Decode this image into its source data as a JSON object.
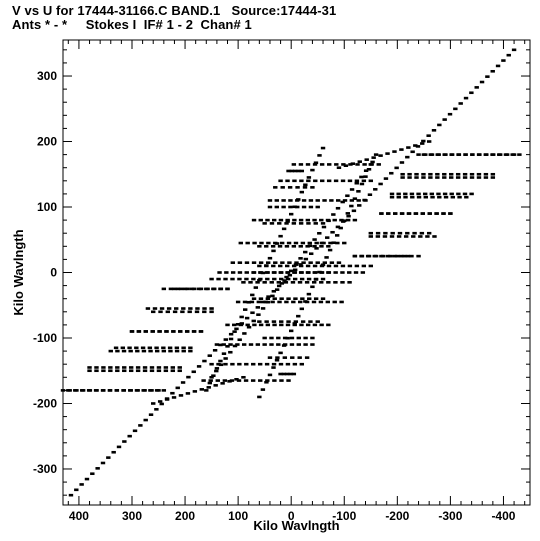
{
  "header": {
    "line1": "V vs U for 17444-31166.C BAND.1   Source:17444-31",
    "line2": "Ants * - *     Stokes I  IF# 1 - 2  Chan# 1"
  },
  "chart_data": {
    "type": "scatter",
    "title": "V vs U for 17444-31166.C BAND.1   Source:17444-31",
    "subtitle": "Ants * - *     Stokes I  IF# 1 - 2  Chan# 1",
    "xlabel": "Kilo Wavlngth",
    "ylabel": "Kilo Wavlngth",
    "xlim": [
      430,
      -450
    ],
    "ylim": [
      -355,
      355
    ],
    "x_reversed": true,
    "xticks": [
      400,
      300,
      200,
      100,
      0,
      -100,
      -200,
      -300,
      -400
    ],
    "xtick_labels": [
      "400",
      "300",
      "200",
      "100",
      "0",
      "-100",
      "-200",
      "-300",
      "-400"
    ],
    "yticks": [
      -300,
      -200,
      -100,
      0,
      100,
      200,
      300
    ],
    "ytick_labels": [
      "-300",
      "-200",
      "-100",
      "0",
      "100",
      "200",
      "300"
    ],
    "grid": false,
    "legend": "none",
    "marker_color": "#000000",
    "series": [
      {
        "diagonal_arcs": [
          {
            "start": [
              415,
              -340
            ],
            "end": [
              -420,
              340
            ]
          },
          {
            "start": [
              150,
              -160
            ],
            "end": [
              -150,
              165
            ]
          },
          {
            "start": [
              -90,
              160
            ],
            "end": [
              -260,
              200
            ]
          },
          {
            "start": [
              90,
              -160
            ],
            "end": [
              260,
              -200
            ]
          },
          {
            "start": [
              160,
              -180
            ],
            "end": [
              -60,
              190
            ]
          },
          {
            "start": [
              60,
              -190
            ],
            "end": [
              -160,
              180
            ]
          }
        ],
        "horizontal_tracks": [
          {
            "y": 180,
            "u_from": -240,
            "u_to": -430
          },
          {
            "y": 165,
            "u_from": -5,
            "u_to": -165
          },
          {
            "y": 150,
            "u_from": -210,
            "u_to": -380
          },
          {
            "y": 140,
            "u_from": 20,
            "u_to": -150
          },
          {
            "y": 120,
            "u_from": -190,
            "u_to": -340
          },
          {
            "y": 110,
            "u_from": 40,
            "u_to": -140
          },
          {
            "y": 90,
            "u_from": -170,
            "u_to": -300
          },
          {
            "y": 80,
            "u_from": 70,
            "u_to": -120
          },
          {
            "y": 60,
            "u_from": -150,
            "u_to": -260
          },
          {
            "y": 45,
            "u_from": 95,
            "u_to": -100
          },
          {
            "y": 25,
            "u_from": -120,
            "u_to": -220
          },
          {
            "y": 15,
            "u_from": 110,
            "u_to": -90
          },
          {
            "y": 0,
            "u_from": 135,
            "u_to": -70
          },
          {
            "y": -10,
            "u_from": 150,
            "u_to": -60
          },
          {
            "y": -25,
            "u_from": 240,
            "u_to": 120
          },
          {
            "y": -40,
            "u_from": 70,
            "u_to": -60
          },
          {
            "y": -55,
            "u_from": 270,
            "u_to": 150
          },
          {
            "y": -75,
            "u_from": 60,
            "u_to": -50
          },
          {
            "y": -90,
            "u_from": 300,
            "u_to": 170
          },
          {
            "y": -100,
            "u_from": 50,
            "u_to": -40
          },
          {
            "y": -115,
            "u_from": 330,
            "u_to": 190
          },
          {
            "y": -130,
            "u_from": 40,
            "u_to": -30
          },
          {
            "y": -145,
            "u_from": 380,
            "u_to": 210
          },
          {
            "y": -155,
            "u_from": 20,
            "u_to": -5
          },
          {
            "y": -180,
            "u_from": 420,
            "u_to": 250
          }
        ]
      }
    ]
  }
}
